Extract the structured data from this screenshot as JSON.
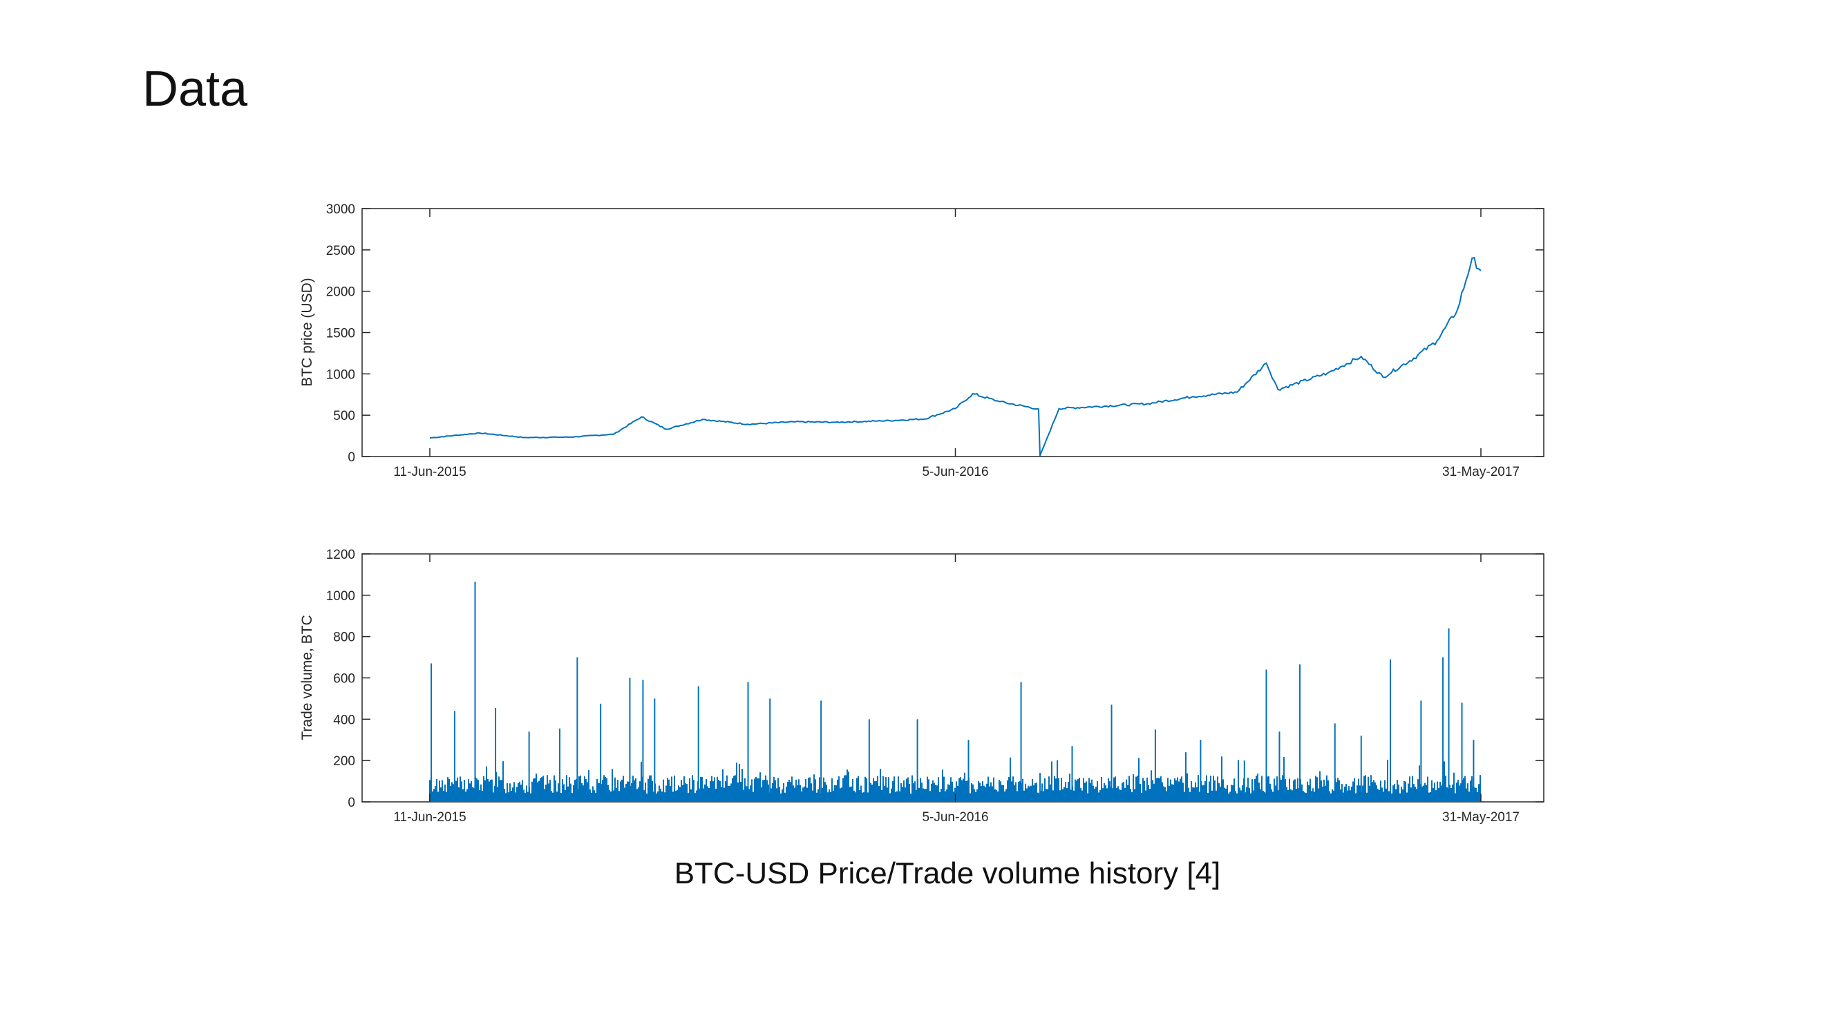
{
  "slide": {
    "title": "Data",
    "caption": "BTC-USD Price/Trade volume history [4]"
  },
  "colors": {
    "series": "#0072BD",
    "axis": "#262626"
  },
  "chart_data": [
    {
      "type": "line",
      "ylabel": "BTC price (USD)",
      "xlabel": "",
      "ylim": [
        0,
        3000
      ],
      "yticks": [
        0,
        500,
        1000,
        1500,
        2000,
        2500,
        3000
      ],
      "xticks": [
        "11-Jun-2015",
        "5-Jun-2016",
        "31-May-2017"
      ],
      "x_unit": "date",
      "grid": false,
      "x": [
        "2015-06-11",
        "2015-07-15",
        "2015-08-15",
        "2015-09-15",
        "2015-10-15",
        "2015-11-03",
        "2015-11-20",
        "2015-12-15",
        "2016-01-15",
        "2016-02-15",
        "2016-03-15",
        "2016-04-15",
        "2016-05-15",
        "2016-06-05",
        "2016-06-17",
        "2016-07-05",
        "2016-08-01",
        "2016-08-02",
        "2016-08-15",
        "2016-09-15",
        "2016-10-15",
        "2016-11-15",
        "2016-12-15",
        "2017-01-04",
        "2017-01-12",
        "2017-02-15",
        "2017-03-10",
        "2017-03-25",
        "2017-04-15",
        "2017-05-01",
        "2017-05-15",
        "2017-05-25",
        "2017-05-31"
      ],
      "series": [
        {
          "values": [
            225,
            285,
            230,
            235,
            270,
            480,
            330,
            450,
            390,
            420,
            415,
            430,
            455,
            580,
            760,
            665,
            575,
            10,
            580,
            610,
            640,
            725,
            780,
            1130,
            810,
            1010,
            1210,
            960,
            1190,
            1400,
            1780,
            2400,
            2250
          ]
        }
      ]
    },
    {
      "type": "bar",
      "ylabel": "Trade volume, BTC",
      "xlabel": "",
      "ylim": [
        0,
        1200
      ],
      "yticks": [
        0,
        200,
        400,
        600,
        800,
        1000,
        1200
      ],
      "xticks": [
        "11-Jun-2015",
        "5-Jun-2016",
        "31-May-2017"
      ],
      "x_unit": "date",
      "grid": false,
      "x": [
        "2015-06-12",
        "2015-06-28",
        "2015-07-12",
        "2015-07-26",
        "2015-08-18",
        "2015-09-08",
        "2015-09-20",
        "2015-10-06",
        "2015-10-26",
        "2015-11-04",
        "2015-11-12",
        "2015-12-12",
        "2016-01-15",
        "2016-01-30",
        "2016-03-05",
        "2016-04-07",
        "2016-05-10",
        "2016-06-14",
        "2016-07-20",
        "2016-08-02",
        "2016-08-24",
        "2016-09-20",
        "2016-10-20",
        "2016-11-20",
        "2016-12-20",
        "2017-01-04",
        "2017-01-13",
        "2017-01-27",
        "2017-02-20",
        "2017-03-10",
        "2017-03-30",
        "2017-04-20",
        "2017-05-05",
        "2017-05-09",
        "2017-05-18",
        "2017-05-26"
      ],
      "series": [
        {
          "values": [
            670,
            440,
            1065,
            455,
            340,
            355,
            700,
            475,
            600,
            590,
            500,
            560,
            580,
            500,
            490,
            400,
            400,
            300,
            580,
            140,
            270,
            470,
            350,
            300,
            200,
            640,
            340,
            665,
            380,
            320,
            690,
            490,
            700,
            840,
            480,
            300
          ]
        }
      ]
    }
  ]
}
